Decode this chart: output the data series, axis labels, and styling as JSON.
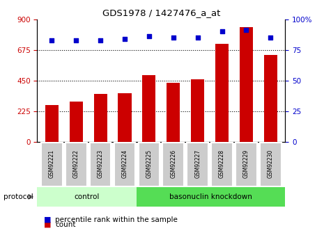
{
  "title": "GDS1978 / 1427476_a_at",
  "samples": [
    "GSM92221",
    "GSM92222",
    "GSM92223",
    "GSM92224",
    "GSM92225",
    "GSM92226",
    "GSM92227",
    "GSM92228",
    "GSM92229",
    "GSM92230"
  ],
  "counts": [
    270,
    295,
    350,
    355,
    490,
    435,
    460,
    720,
    840,
    635
  ],
  "percentiles": [
    83,
    83,
    83,
    84,
    86,
    85,
    85,
    90,
    91,
    85
  ],
  "bar_color": "#cc0000",
  "dot_color": "#0000cc",
  "ylim_left": [
    0,
    900
  ],
  "ylim_right": [
    0,
    100
  ],
  "yticks_left": [
    0,
    225,
    450,
    675,
    900
  ],
  "yticks_right": [
    0,
    25,
    50,
    75,
    100
  ],
  "grid_values": [
    225,
    450,
    675
  ],
  "control_color": "#ccffcc",
  "knockdown_color": "#55dd55",
  "label_bg_color": "#cccccc",
  "bar_width": 0.55,
  "legend_count_label": "count",
  "legend_pct_label": "percentile rank within the sample",
  "n_control": 4
}
